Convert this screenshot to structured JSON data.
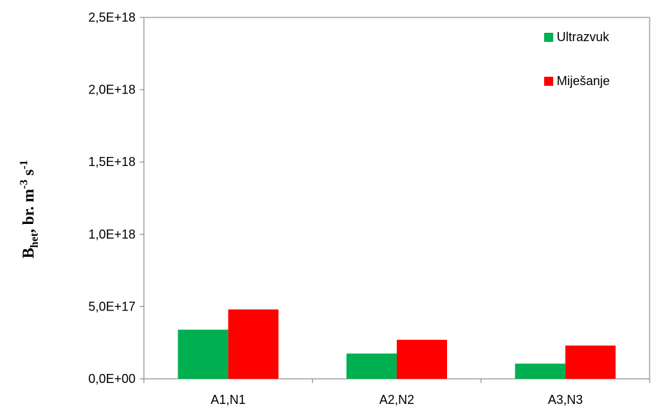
{
  "chart_data": {
    "type": "bar",
    "categories": [
      "A1,N1",
      "A2,N2",
      "A3,N3"
    ],
    "series": [
      {
        "name": "Ultrazvuk",
        "color": "#00b050",
        "values": [
          3.4e+17,
          1.75e+17,
          1.05e+17
        ]
      },
      {
        "name": "Miješanje",
        "color": "#ff0000",
        "values": [
          4.8e+17,
          2.7e+17,
          2.3e+17
        ]
      }
    ],
    "ylim": [
      0,
      2.5e+18
    ],
    "yticks": [
      {
        "value": 0,
        "label": "0,0E+00"
      },
      {
        "value": 5e+17,
        "label": "5,0E+17"
      },
      {
        "value": 1e+18,
        "label": "1,0E+18"
      },
      {
        "value": 1.5e+18,
        "label": "1,5E+18"
      },
      {
        "value": 2e+18,
        "label": "2,0E+18"
      },
      {
        "value": 2.5e+18,
        "label": "2,5E+18"
      }
    ],
    "ylabel": {
      "main": "B",
      "sub": "het",
      "mid": ", br. m",
      "sup1": "-3",
      "mid2": " s",
      "sup2": "-1"
    },
    "xlabel": "",
    "title": "",
    "grid": false,
    "legend_position": "top-right"
  }
}
